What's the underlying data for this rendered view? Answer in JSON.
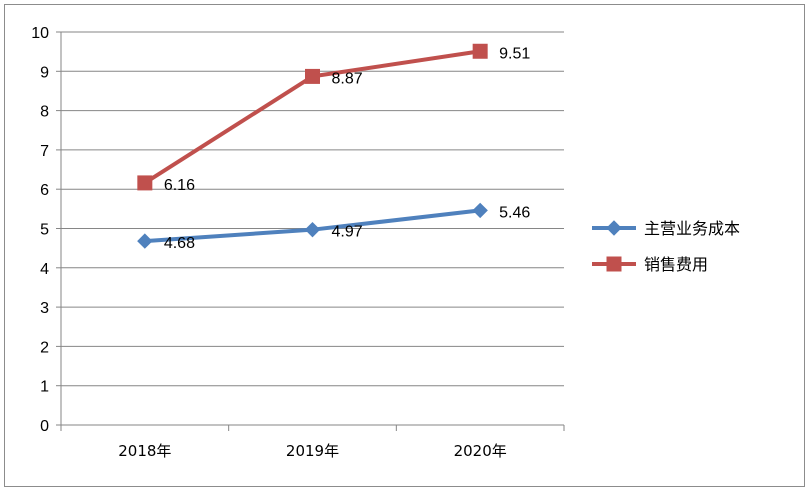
{
  "chart_data": {
    "type": "line",
    "categories": [
      "2018年",
      "2019年",
      "2020年"
    ],
    "series": [
      {
        "name": "主营业务成本",
        "values": [
          4.68,
          4.97,
          5.46
        ],
        "labels": [
          "4.68",
          "4.97",
          "5.46"
        ],
        "color": "#4f81bd",
        "marker": "diamond"
      },
      {
        "name": "销售费用",
        "values": [
          6.16,
          8.87,
          9.51
        ],
        "labels": [
          "6.16",
          "8.87",
          "9.51"
        ],
        "color": "#c0504d",
        "marker": "square"
      }
    ],
    "y_ticks": [
      "0",
      "1",
      "2",
      "3",
      "4",
      "5",
      "6",
      "7",
      "8",
      "9",
      "10"
    ],
    "ylim": [
      0,
      10
    ],
    "grid": true,
    "legend_position": "right"
  }
}
